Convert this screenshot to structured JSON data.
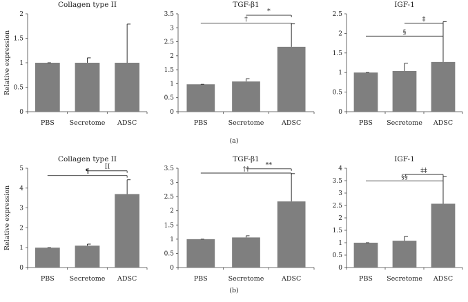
{
  "figure_labels": {
    "row_a": "(a)",
    "row_b": "(b)"
  },
  "chart_data": [
    {
      "type": "bar",
      "title": "Collagen type II",
      "row": "a",
      "categories": [
        "PBS",
        "Secretome",
        "ADSC"
      ],
      "values": [
        1.0,
        1.0,
        1.0
      ],
      "errors": [
        0.0,
        0.1,
        0.79
      ],
      "ylabel": "Relative expression",
      "ylim": [
        0,
        2
      ],
      "yticks": [
        0,
        0.5,
        1,
        1.5,
        2
      ],
      "yticklabels": [
        "0",
        "0.5",
        "1",
        "1.5",
        "2"
      ],
      "significance": []
    },
    {
      "type": "bar",
      "title": "TGF-β1",
      "row": "a",
      "categories": [
        "PBS",
        "Secretome",
        "ADSC"
      ],
      "values": [
        0.98,
        1.08,
        2.32
      ],
      "errors": [
        0.0,
        0.1,
        0.82
      ],
      "ylabel": "",
      "ylim": [
        0,
        3.5
      ],
      "yticks": [
        0,
        0.5,
        1,
        1.5,
        2,
        2.5,
        3,
        3.5
      ],
      "yticklabels": [
        "0",
        "0.5",
        "1",
        "1.5",
        "2",
        "2.5",
        "3",
        "3.5"
      ],
      "significance": [
        {
          "from": 1,
          "to": 2,
          "y": 3.45,
          "label": "*"
        },
        {
          "from": 0,
          "to": 2,
          "y": 3.17,
          "label": "†"
        }
      ]
    },
    {
      "type": "bar",
      "title": "IGF-1",
      "row": "a",
      "categories": [
        "PBS",
        "Secretome",
        "ADSC"
      ],
      "values": [
        1.0,
        1.04,
        1.27
      ],
      "errors": [
        0.0,
        0.2,
        1.03
      ],
      "ylabel": "",
      "ylim": [
        0,
        2.5
      ],
      "yticks": [
        0,
        0.5,
        1,
        1.5,
        2,
        2.5
      ],
      "yticklabels": [
        "0",
        "0.5",
        "1",
        "1.5",
        "2",
        "2.5"
      ],
      "significance": [
        {
          "from": 1,
          "to": 2,
          "y": 2.26,
          "label": "‡"
        },
        {
          "from": 0,
          "to": 2,
          "y": 1.93,
          "label": "§"
        }
      ]
    },
    {
      "type": "bar",
      "title": "Collagen type II",
      "row": "b",
      "categories": [
        "PBS",
        "Secretome",
        "ADSC"
      ],
      "values": [
        1.0,
        1.1,
        3.7
      ],
      "errors": [
        0.0,
        0.08,
        0.72
      ],
      "ylabel": "Relative expression",
      "ylim": [
        0,
        5
      ],
      "yticks": [
        0,
        1,
        2,
        3,
        4,
        5
      ],
      "yticklabels": [
        "0",
        "1",
        "2",
        "3",
        "4",
        "5"
      ],
      "significance": [
        {
          "from": 1,
          "to": 2,
          "y": 4.87,
          "label": "II"
        },
        {
          "from": 0,
          "to": 2,
          "y": 4.63,
          "label": "¶"
        }
      ]
    },
    {
      "type": "bar",
      "title": "TGF-β1",
      "row": "b",
      "categories": [
        "PBS",
        "Secretome",
        "ADSC"
      ],
      "values": [
        1.0,
        1.06,
        2.33
      ],
      "errors": [
        0.0,
        0.06,
        0.98
      ],
      "ylabel": "",
      "ylim": [
        0,
        3.5
      ],
      "yticks": [
        0,
        0.5,
        1,
        1.5,
        2,
        2.5,
        3,
        3.5
      ],
      "yticklabels": [
        "0",
        "0.5",
        "1",
        "1.5",
        "2",
        "2.5",
        "3",
        "3.5"
      ],
      "significance": [
        {
          "from": 1,
          "to": 2,
          "y": 3.48,
          "label": "**"
        },
        {
          "from": 0,
          "to": 2,
          "y": 3.33,
          "label": "††"
        }
      ]
    },
    {
      "type": "bar",
      "title": "IGF-1",
      "row": "b",
      "categories": [
        "PBS",
        "Secretome",
        "ADSC"
      ],
      "values": [
        1.0,
        1.08,
        2.57
      ],
      "errors": [
        0.0,
        0.18,
        1.1
      ],
      "ylabel": "",
      "ylim": [
        0,
        4
      ],
      "yticks": [
        0,
        0.5,
        1,
        1.5,
        2,
        2.5,
        3,
        3.5,
        4
      ],
      "yticklabels": [
        "0",
        "0.5",
        "1",
        "1.5",
        "2",
        "2.5",
        "3",
        "3.5",
        "4"
      ],
      "significance": [
        {
          "from": 1,
          "to": 2,
          "y": 3.75,
          "label": "‡‡"
        },
        {
          "from": 0,
          "to": 2,
          "y": 3.49,
          "label": "§§"
        }
      ]
    }
  ]
}
